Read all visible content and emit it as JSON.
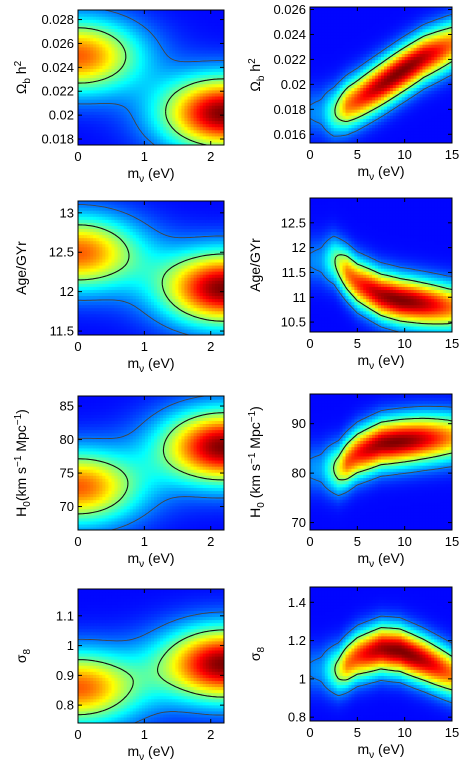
{
  "chart_data": [
    {
      "type": "heatmap",
      "x_label": {
        "main": "m",
        "sub": "ν",
        "rest": " (eV)"
      },
      "y_label": {
        "main": "Ω",
        "sub": "b",
        "rest": " h",
        "sup": "2"
      },
      "xlim": [
        0,
        2.2
      ],
      "ylim": [
        0.0175,
        0.0288
      ],
      "x_ticks": [
        0,
        1,
        2
      ],
      "x_tick_labels": [
        "0",
        "1",
        "2"
      ],
      "y_ticks": [
        0.018,
        0.02,
        0.022,
        0.024,
        0.026,
        0.028
      ],
      "y_tick_labels": [
        "0.018",
        "0.02",
        "0.022",
        "0.024",
        "0.026",
        "0.028"
      ],
      "peaks": [
        {
          "x": 0.0,
          "y": 0.025,
          "amp": 0.75
        },
        {
          "x": 2.2,
          "y": 0.0202,
          "amp": 1.0
        }
      ]
    },
    {
      "type": "heatmap",
      "x_label": {
        "main": "m",
        "sub": "ν",
        "rest": " (eV)"
      },
      "y_label": {
        "main": "Ω",
        "sub": "b",
        "rest": " h",
        "sup": "2"
      },
      "xlim": [
        0,
        15
      ],
      "ylim": [
        0.0153,
        0.0262
      ],
      "x_ticks": [
        0,
        5,
        10,
        15
      ],
      "x_tick_labels": [
        "0",
        "5",
        "10",
        "15"
      ],
      "y_ticks": [
        0.016,
        0.018,
        0.02,
        0.022,
        0.024,
        0.026
      ],
      "y_tick_labels": [
        "0.016",
        "0.018",
        "0.02",
        "0.022",
        "0.024",
        "0.026"
      ],
      "ridge": {
        "x": [
          2.5,
          5,
          7.5,
          9.5,
          12,
          15
        ],
        "y": [
          0.0178,
          0.0188,
          0.02,
          0.021,
          0.0222,
          0.0232
        ]
      },
      "peak": {
        "x": 9.5,
        "y": 0.021
      }
    },
    {
      "type": "heatmap",
      "x_label": {
        "main": "m",
        "sub": "ν",
        "rest": " (eV)"
      },
      "y_label": {
        "main": "Age/GYr"
      },
      "xlim": [
        0,
        2.2
      ],
      "ylim": [
        11.45,
        13.15
      ],
      "x_ticks": [
        0,
        1,
        2
      ],
      "x_tick_labels": [
        "0",
        "1",
        "2"
      ],
      "y_ticks": [
        11.5,
        12,
        12.5,
        13
      ],
      "y_tick_labels": [
        "11.5",
        "12",
        "12.5",
        "13"
      ],
      "peaks": [
        {
          "x": 0.0,
          "y": 12.5,
          "amp": 0.75
        },
        {
          "x": 2.2,
          "y": 12.05,
          "amp": 1.0
        }
      ]
    },
    {
      "type": "heatmap",
      "x_label": {
        "main": "m",
        "sub": "ν",
        "rest": " (eV)"
      },
      "y_label": {
        "main": "Age/GYr"
      },
      "xlim": [
        0,
        15
      ],
      "ylim": [
        10.3,
        13.0
      ],
      "x_ticks": [
        0,
        5,
        10,
        15
      ],
      "x_tick_labels": [
        "0",
        "5",
        "10",
        "15"
      ],
      "y_ticks": [
        10.5,
        11,
        11.5,
        12,
        12.5
      ],
      "y_tick_labels": [
        "10.5",
        "11",
        "11.5",
        "12",
        "12.5"
      ],
      "ridge": {
        "x": [
          2.5,
          5,
          7.5,
          9.5,
          12,
          14.5
        ],
        "y": [
          11.75,
          11.3,
          11.05,
          10.95,
          10.88,
          10.82
        ]
      },
      "peak": {
        "x": 9.5,
        "y": 10.97
      }
    },
    {
      "type": "heatmap",
      "x_label": {
        "main": "m",
        "sub": "ν",
        "rest": " (eV)"
      },
      "y_label": {
        "main": "H",
        "sub": "0",
        "rest": "(km s",
        "sup": "−1",
        "rest2": " Mpc",
        "sup2": "−1",
        "rest3": ")"
      },
      "xlim": [
        0,
        2.2
      ],
      "ylim": [
        66.5,
        86.5
      ],
      "x_ticks": [
        0,
        1,
        2
      ],
      "x_tick_labels": [
        "0",
        "1",
        "2"
      ],
      "y_ticks": [
        70,
        75,
        80,
        85
      ],
      "y_tick_labels": [
        "70",
        "75",
        "80",
        "85"
      ],
      "peaks": [
        {
          "x": 0.0,
          "y": 73.0,
          "amp": 0.75
        },
        {
          "x": 2.2,
          "y": 79.0,
          "amp": 1.0
        }
      ]
    },
    {
      "type": "heatmap",
      "x_label": {
        "main": "m",
        "sub": "ν",
        "rest": " (eV)"
      },
      "y_label": {
        "main": "H",
        "sub": "0",
        "rest": " (km s",
        "sup": "−1",
        "rest2": " Mpc",
        "sup2": "−1",
        "rest3": ")"
      },
      "xlim": [
        0,
        15
      ],
      "ylim": [
        68.5,
        96.0
      ],
      "x_ticks": [
        0,
        5,
        10,
        15
      ],
      "x_tick_labels": [
        "0",
        "5",
        "10",
        "15"
      ],
      "y_ticks": [
        70,
        80,
        90
      ],
      "y_tick_labels": [
        "70",
        "80",
        "90"
      ],
      "ridge": {
        "x": [
          3,
          5,
          7.5,
          9.5,
          12,
          14.5
        ],
        "y": [
          81.0,
          84.0,
          86.0,
          86.5,
          87.0,
          87.3
        ]
      },
      "peak": {
        "x": 9.0,
        "y": 86.0
      }
    },
    {
      "type": "heatmap",
      "x_label": {
        "main": "m",
        "sub": "ν",
        "rest": " (eV)"
      },
      "y_label": {
        "main": "σ",
        "sub": "8"
      },
      "xlim": [
        0,
        2.2
      ],
      "ylim": [
        0.74,
        1.19
      ],
      "x_ticks": [
        0,
        1,
        2
      ],
      "x_tick_labels": [
        "0",
        "1",
        "2"
      ],
      "y_ticks": [
        0.8,
        0.9,
        1.0,
        1.1
      ],
      "y_tick_labels": [
        "0.8",
        "0.9",
        "1",
        "1.1"
      ],
      "peaks": [
        {
          "x": 0.0,
          "y": 0.86,
          "amp": 0.75
        },
        {
          "x": 2.2,
          "y": 0.94,
          "amp": 1.0
        }
      ]
    },
    {
      "type": "heatmap",
      "x_label": {
        "main": "m",
        "sub": "ν",
        "rest": " (eV)"
      },
      "y_label": {
        "main": "σ",
        "sub": "8"
      },
      "xlim": [
        0,
        15
      ],
      "ylim": [
        0.78,
        1.48
      ],
      "x_ticks": [
        0,
        5,
        10,
        15
      ],
      "x_tick_labels": [
        "0",
        "5",
        "10",
        "15"
      ],
      "y_ticks": [
        0.8,
        1.0,
        1.2,
        1.4
      ],
      "y_tick_labels": [
        "0.8",
        "1",
        "1.2",
        "1.4"
      ],
      "ridge": {
        "x": [
          3,
          5,
          7.5,
          9.5,
          12,
          15
        ],
        "y": [
          1.05,
          1.12,
          1.16,
          1.15,
          1.1,
          1.03
        ]
      },
      "peak": {
        "x": 9.5,
        "y": 1.15
      }
    }
  ]
}
